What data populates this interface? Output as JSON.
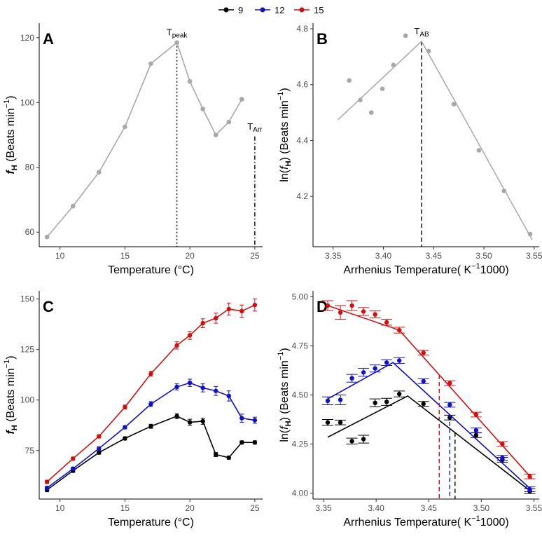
{
  "legend": {
    "entries": [
      {
        "label": "9",
        "color": "#000000"
      },
      {
        "label": "12",
        "color": "#1010c8"
      },
      {
        "label": "15",
        "color": "#d01010"
      }
    ]
  },
  "chart_data": [
    {
      "id": "A",
      "type": "line",
      "panel_label": "A",
      "xlabel": "Temperature (°C)",
      "ylabel_main": "f",
      "ylabel_sub": "H",
      "ylabel_rest": " (Beats  min",
      "ylabel_sup": "−1",
      "ylabel_end": ")",
      "xlim": [
        8.4,
        25.6
      ],
      "ylim": [
        55.5,
        124.5
      ],
      "xticks": [
        10,
        15,
        20,
        25
      ],
      "yticks": [
        60,
        80,
        100,
        120
      ],
      "point_color": "#a8a8a8",
      "x": [
        9,
        11,
        13,
        15,
        17,
        19,
        20,
        21,
        22,
        23,
        24
      ],
      "y": [
        58.5,
        68,
        78.5,
        92.5,
        112,
        118.5,
        106.5,
        98,
        90,
        94,
        101
      ],
      "vlines": [
        {
          "x": 19,
          "y_top": 118.5,
          "style": "dotted",
          "label": "T",
          "sub": "peak"
        },
        {
          "x": 25,
          "y_top": 89.5,
          "style": "dashdot",
          "label": "T",
          "sub": "Arr"
        }
      ]
    },
    {
      "id": "B",
      "type": "scatter",
      "panel_label": "B",
      "xlabel": "Arrhenius Temperature( K",
      "xlabel_sup": "−1",
      "xlabel_end": "1000)",
      "ylabel_main": "ln(",
      "ylabel_it": "f",
      "ylabel_sub": "H",
      "ylabel_rest": ") (Beats  min",
      "ylabel_sup": "−1",
      "ylabel_end": ")",
      "xlim": [
        3.33,
        3.555
      ],
      "ylim": [
        4.02,
        4.82
      ],
      "xticks": [
        3.35,
        3.4,
        3.45,
        3.5,
        3.55
      ],
      "yticks": [
        4.2,
        4.4,
        4.6,
        4.8
      ],
      "point_color": "#a8a8a8",
      "x": [
        3.366,
        3.377,
        3.388,
        3.399,
        3.41,
        3.422,
        3.445,
        3.47,
        3.495,
        3.52,
        3.546
      ],
      "y": [
        4.615,
        4.545,
        4.5,
        4.585,
        4.67,
        4.775,
        4.72,
        4.53,
        4.365,
        4.22,
        4.065
      ],
      "fit_lines": [
        {
          "x": [
            3.355,
            3.438
          ],
          "y": [
            4.475,
            4.755
          ]
        },
        {
          "x": [
            3.438,
            3.548
          ],
          "y": [
            4.755,
            4.045
          ]
        }
      ],
      "vlines": [
        {
          "x": 3.438,
          "y_top": 4.755,
          "style": "dashed",
          "label": "T",
          "sub": "AB"
        }
      ]
    },
    {
      "id": "C",
      "type": "line",
      "panel_label": "C",
      "xlabel": "Temperature (°C)",
      "ylabel_main": "f",
      "ylabel_sub": "H",
      "ylabel_rest": " (Beats  min",
      "ylabel_sup": "−1",
      "ylabel_end": ")",
      "xlim": [
        8.4,
        25.6
      ],
      "ylim": [
        51,
        154
      ],
      "xticks": [
        10,
        15,
        20,
        25
      ],
      "yticks": [
        75,
        100,
        125,
        150
      ],
      "x": [
        9,
        11,
        13,
        15,
        17,
        19,
        20,
        21,
        22,
        23,
        24,
        25
      ],
      "series": [
        {
          "name": "9",
          "color": "#000000",
          "values": [
            55.5,
            65,
            74,
            81,
            87,
            92,
            89,
            89.5,
            73,
            71.5,
            79,
            79
          ],
          "err": [
            0.8,
            0.8,
            0.8,
            0.8,
            1,
            1.2,
            1.5,
            1.5,
            1,
            0.8,
            0.8,
            0.8
          ]
        },
        {
          "name": "12",
          "color": "#1010c8",
          "values": [
            56.5,
            66,
            76,
            86.5,
            98,
            106.5,
            108.5,
            106,
            104.5,
            102,
            91,
            90
          ],
          "err": [
            0.8,
            0.8,
            0.8,
            0.8,
            1.2,
            1.5,
            1.8,
            2,
            2.2,
            2.5,
            2,
            1.5
          ]
        },
        {
          "name": "15",
          "color": "#d01010",
          "values": [
            59.5,
            71,
            82,
            96.5,
            113,
            127,
            132,
            138,
            140.5,
            145,
            144,
            147
          ],
          "err": [
            0.8,
            0.8,
            0.8,
            1,
            1.2,
            1.8,
            2,
            2.2,
            2.5,
            3,
            3,
            3
          ]
        }
      ]
    },
    {
      "id": "D",
      "type": "scatter",
      "panel_label": "D",
      "xlabel": "Arrhenius Temperature( K",
      "xlabel_sup": "−1",
      "xlabel_end": "1000)",
      "ylabel_main": "ln(",
      "ylabel_it": "f",
      "ylabel_sub": "H",
      "ylabel_rest": ") (Beats  min",
      "ylabel_sup": "−1",
      "ylabel_end": ")",
      "xlim": [
        3.34,
        3.555
      ],
      "ylim": [
        3.97,
        5.03
      ],
      "xticks": [
        3.35,
        3.4,
        3.45,
        3.5,
        3.55
      ],
      "yticks": [
        4.0,
        4.25,
        4.5,
        4.75,
        5.0
      ],
      "x": [
        3.354,
        3.366,
        3.377,
        3.388,
        3.399,
        3.41,
        3.422,
        3.445,
        3.47,
        3.495,
        3.52,
        3.546
      ],
      "series": [
        {
          "name": "9",
          "color": "#000000",
          "values": [
            4.36,
            4.36,
            4.265,
            4.275,
            4.46,
            4.465,
            4.505,
            4.455,
            4.385,
            4.295,
            4.17,
            4.01
          ],
          "err": [
            0.015,
            0.012,
            0.015,
            0.02,
            0.02,
            0.018,
            0.015,
            0.012,
            0.012,
            0.012,
            0.012,
            0.012
          ],
          "fit_x": [
            3.354,
            3.43,
            3.548
          ],
          "fit_y": [
            4.285,
            4.495,
            4.005
          ],
          "break_x": 3.475
        },
        {
          "name": "12",
          "color": "#1010c8",
          "values": [
            4.47,
            4.475,
            4.585,
            4.615,
            4.635,
            4.665,
            4.675,
            4.57,
            4.45,
            4.32,
            4.18,
            4.02
          ],
          "err": [
            0.02,
            0.025,
            0.02,
            0.02,
            0.018,
            0.015,
            0.015,
            0.012,
            0.012,
            0.012,
            0.012,
            0.012
          ],
          "fit_x": [
            3.354,
            3.416,
            3.548
          ],
          "fit_y": [
            4.48,
            4.665,
            4.015
          ],
          "break_x": 3.47
        },
        {
          "name": "15",
          "color": "#d01010",
          "values": [
            4.955,
            4.92,
            4.955,
            4.925,
            4.91,
            4.87,
            4.83,
            4.715,
            4.56,
            4.4,
            4.25,
            4.085
          ],
          "err": [
            0.025,
            0.035,
            0.025,
            0.02,
            0.018,
            0.015,
            0.015,
            0.012,
            0.012,
            0.012,
            0.012,
            0.012
          ],
          "fit_x": [
            3.354,
            3.422,
            3.548
          ],
          "fit_y": [
            4.955,
            4.83,
            4.075
          ],
          "break_x": 3.46
        }
      ]
    }
  ]
}
